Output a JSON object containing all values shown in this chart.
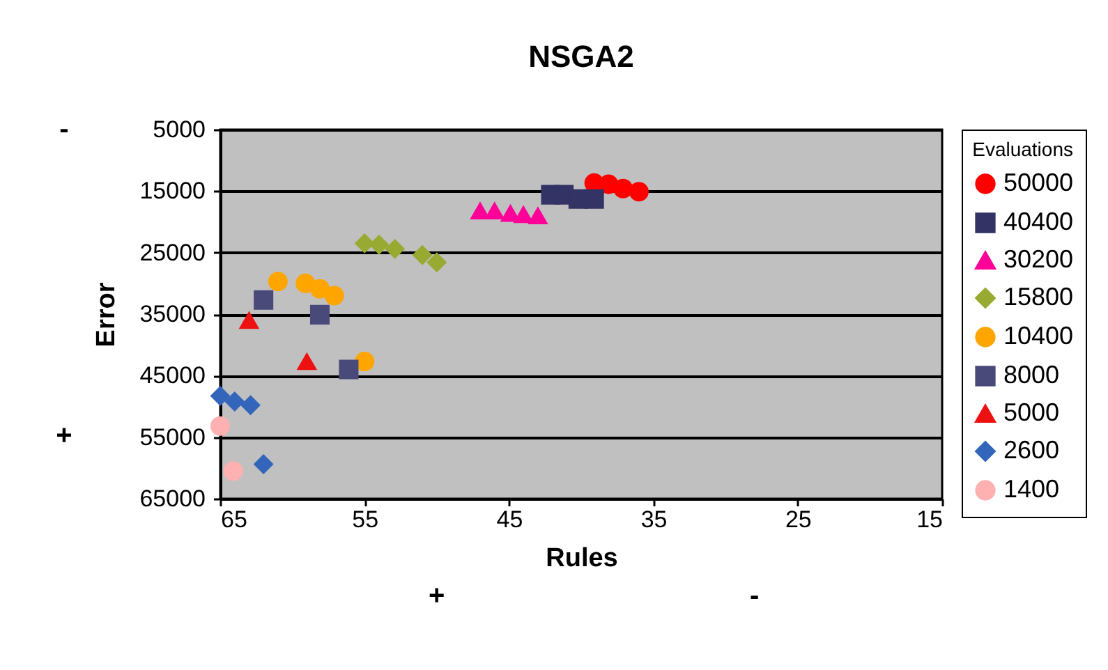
{
  "chart_data": {
    "type": "scatter",
    "title": "NSGA2",
    "xlabel": "Rules",
    "ylabel": "Error",
    "legend_title": "Evaluations",
    "annotations": [
      "-",
      "+",
      "+",
      "-"
    ],
    "xlim": [
      65,
      15
    ],
    "xticks": [
      65,
      55,
      45,
      35,
      25,
      15
    ],
    "ylim": [
      65000,
      5000
    ],
    "yticks": [
      5000,
      15000,
      25000,
      35000,
      45000,
      55000,
      65000
    ],
    "grid": "y",
    "legend": "right",
    "series": [
      {
        "name": "50000",
        "color": "#ff0000",
        "marker": "circle",
        "x": [
          39.1,
          38.1,
          37.1,
          36.0
        ],
        "values": [
          13700,
          13900,
          14600,
          15100
        ]
      },
      {
        "name": "40400",
        "color": "#333366",
        "marker": "square",
        "x": [
          42.1,
          41.2,
          40.2,
          39.1
        ],
        "values": [
          15600,
          15600,
          16300,
          16300
        ]
      },
      {
        "name": "30200",
        "color": "#ff0099",
        "marker": "triangle",
        "x": [
          47.0,
          46.0,
          44.9,
          44.0,
          43.0
        ],
        "values": [
          18200,
          18200,
          18600,
          18800,
          19000
        ]
      },
      {
        "name": "15800",
        "color": "#99aa33",
        "marker": "diamond",
        "x": [
          55.0,
          54.0,
          52.9,
          51.0,
          50.0
        ],
        "values": [
          23500,
          23700,
          24400,
          25400,
          26600
        ]
      },
      {
        "name": "10400",
        "color": "#ffa500",
        "marker": "circle",
        "x": [
          61.0,
          59.1,
          58.1,
          57.1,
          55.0
        ],
        "values": [
          29700,
          30000,
          30900,
          32000,
          42700
        ]
      },
      {
        "name": "8000",
        "color": "#4a4a7a",
        "marker": "square",
        "x": [
          62.0,
          58.1,
          56.1
        ],
        "values": [
          32700,
          35100,
          44000
        ]
      },
      {
        "name": "5000",
        "color": "#ee1111",
        "marker": "triangle",
        "x": [
          63.0,
          59.0
        ],
        "values": [
          36000,
          42700
        ]
      },
      {
        "name": "2600",
        "color": "#3366bb",
        "marker": "diamond",
        "x": [
          65.0,
          64.0,
          62.9,
          62.0
        ],
        "values": [
          48300,
          49200,
          49800,
          59400
        ]
      },
      {
        "name": "1400",
        "color": "#ffb0b0",
        "marker": "circle",
        "x": [
          65.0,
          64.1
        ],
        "values": [
          53200,
          60500
        ]
      }
    ]
  }
}
